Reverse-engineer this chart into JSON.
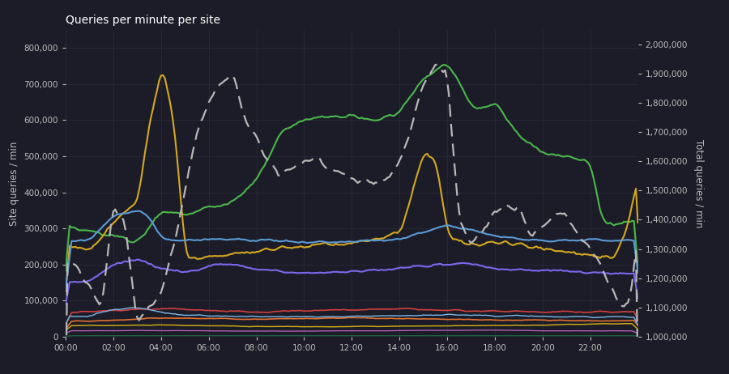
{
  "title": "Queries per minute per site",
  "ylabel_left": "Site queries / min",
  "ylabel_right": "Total queries / min",
  "background_color": "#1c1c28",
  "grid_color": "#2e2e42",
  "text_color": "#bbbbbb"
}
